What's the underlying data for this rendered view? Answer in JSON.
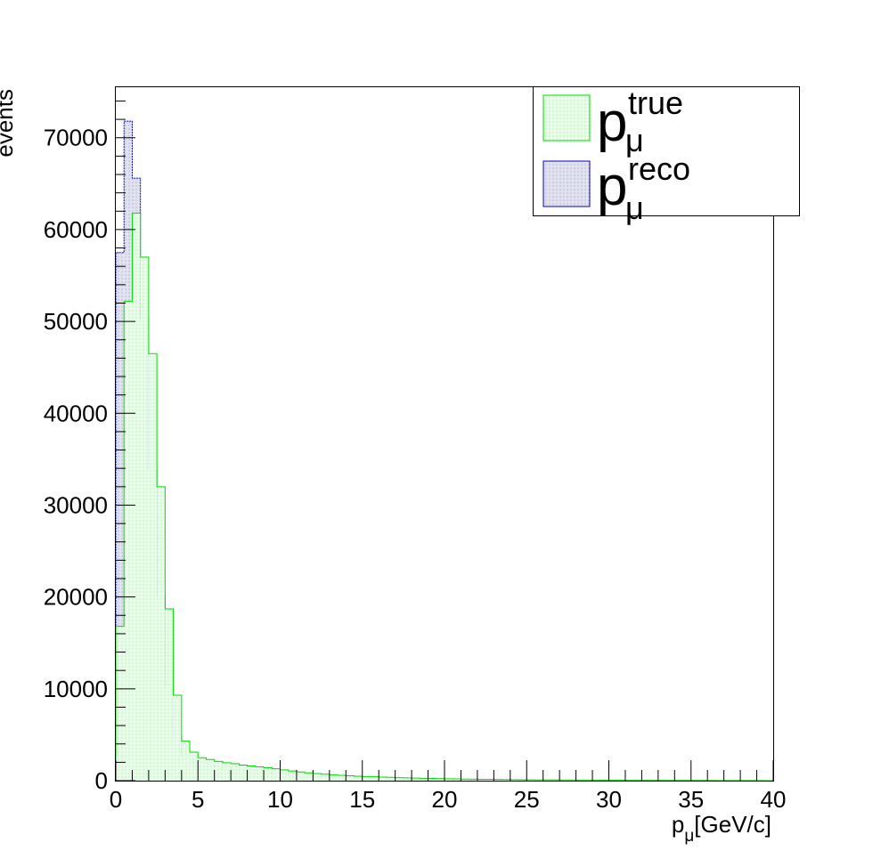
{
  "chart_data": {
    "type": "bar",
    "title": "",
    "xlabel": {
      "main": "p",
      "sub": "μ",
      "rest": "[GeV/c]"
    },
    "ylabel": "events",
    "xlim": [
      0,
      40
    ],
    "ylim": [
      0,
      75500
    ],
    "bin_width": 0.5,
    "x_ticks": [
      0,
      5,
      10,
      15,
      20,
      25,
      30,
      35,
      40
    ],
    "y_ticks": [
      0,
      10000,
      20000,
      30000,
      40000,
      50000,
      60000,
      70000
    ],
    "grid": false,
    "legend_position": "top-right",
    "series": [
      {
        "name": {
          "main": "p",
          "sup": "true",
          "sub": "μ"
        },
        "color": "#00dd00",
        "fill": "#e9fbe9",
        "values": [
          16800,
          52200,
          61800,
          57000,
          46500,
          32000,
          18700,
          9300,
          4300,
          3100,
          2500,
          2300,
          2100,
          1950,
          1850,
          1700,
          1600,
          1500,
          1400,
          1300,
          1180,
          1050,
          950,
          850,
          770,
          700,
          640,
          580,
          530,
          490,
          450,
          420,
          390,
          360,
          330,
          300,
          280,
          260,
          240,
          220,
          205,
          190,
          175,
          160,
          150,
          140,
          130,
          120,
          110,
          100,
          95,
          90,
          85,
          80,
          75,
          70,
          65,
          60,
          55,
          50,
          48,
          45,
          42,
          40,
          38,
          35,
          33,
          30,
          28,
          26,
          24,
          22,
          20,
          18,
          16,
          14,
          12,
          10,
          8,
          6
        ]
      },
      {
        "name": {
          "main": "p",
          "sup": "reco",
          "sub": "μ"
        },
        "color": "#0000cc",
        "fill": "#e2e2ee",
        "values": [
          57500,
          71800,
          65600,
          50300,
          33800,
          20100,
          10300,
          4900,
          2700,
          2200,
          1900,
          1700,
          1550,
          1400,
          1300,
          1180,
          1080,
          980,
          890,
          800,
          720,
          650,
          590,
          530,
          480,
          440,
          400,
          370,
          340,
          310,
          285,
          260,
          240,
          220,
          200,
          185,
          170,
          155,
          140,
          130,
          120,
          110,
          100,
          92,
          85,
          78,
          72,
          66,
          60,
          55,
          50,
          46,
          42,
          38,
          35,
          32,
          29,
          26,
          24,
          22,
          20,
          18,
          16,
          15,
          14,
          13,
          12,
          11,
          10,
          9,
          8,
          7,
          6,
          5,
          5,
          4,
          4,
          3,
          3,
          2
        ]
      }
    ]
  }
}
